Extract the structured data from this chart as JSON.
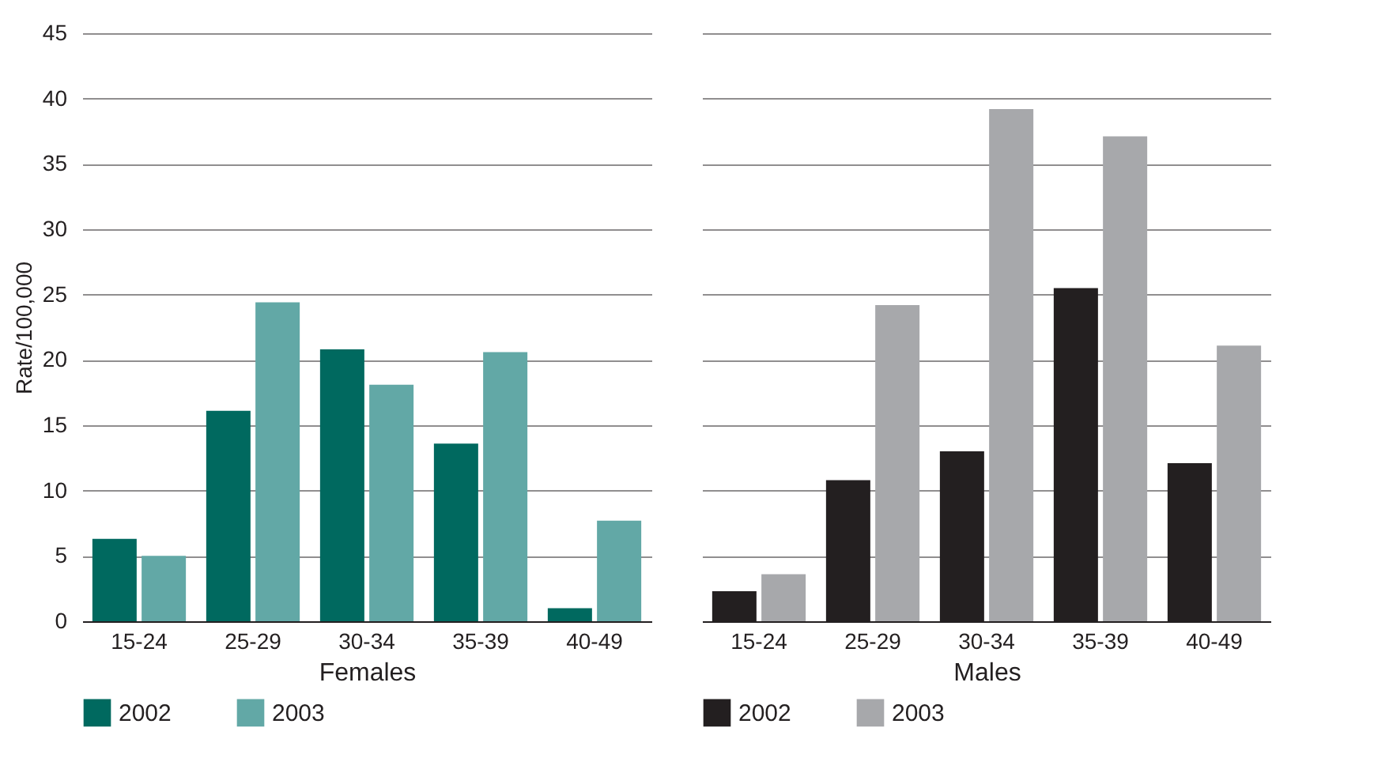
{
  "chart_data": [
    {
      "type": "bar",
      "xlabel": "Females",
      "ylabel": "Rate/100,000",
      "categories": [
        "15-24",
        "25-29",
        "30-34",
        "35-39",
        "40-49"
      ],
      "series": [
        {
          "name": "2002",
          "color": "#00695f",
          "values": [
            6.3,
            16.1,
            20.8,
            13.6,
            1.0
          ]
        },
        {
          "name": "2003",
          "color": "#62a8a6",
          "values": [
            5.0,
            24.4,
            18.1,
            20.6,
            7.7
          ]
        }
      ],
      "ylim": [
        0,
        45
      ],
      "yticks": [
        0,
        5,
        10,
        15,
        20,
        25,
        30,
        35,
        40,
        45
      ],
      "grid": "y",
      "legend": "bottom"
    },
    {
      "type": "bar",
      "xlabel": "Males",
      "categories": [
        "15-24",
        "25-29",
        "30-34",
        "35-39",
        "40-49"
      ],
      "series": [
        {
          "name": "2002",
          "color": "#231f20",
          "values": [
            2.3,
            10.8,
            13.0,
            25.5,
            12.1
          ]
        },
        {
          "name": "2003",
          "color": "#a7a8ab",
          "values": [
            3.6,
            24.2,
            39.2,
            37.1,
            21.1
          ]
        }
      ],
      "ylim": [
        0,
        45
      ],
      "yticks": [
        0,
        5,
        10,
        15,
        20,
        25,
        30,
        35,
        40,
        45
      ],
      "grid": "y",
      "legend": "bottom",
      "tick_labels": "x"
    }
  ]
}
